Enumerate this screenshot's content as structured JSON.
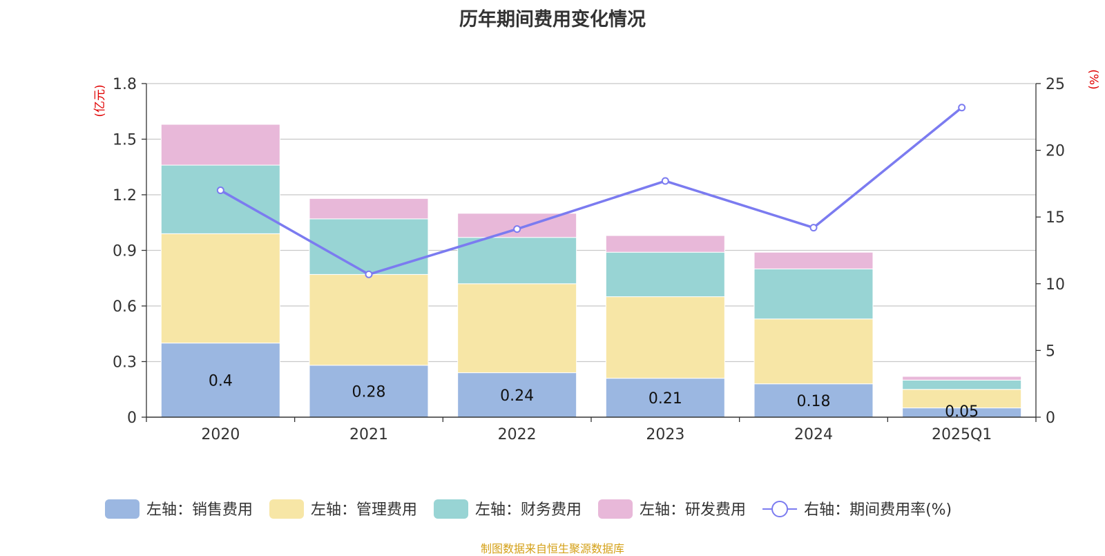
{
  "chart_data": {
    "type": "bar",
    "stacked": true,
    "title": "历年期间费用变化情况",
    "categories": [
      "2020",
      "2021",
      "2022",
      "2023",
      "2024",
      "2025Q1"
    ],
    "y_left": {
      "unit_label": "(亿元)",
      "ylim": [
        0,
        1.8
      ],
      "ticks": [
        "0",
        "0.3",
        "0.6",
        "0.9",
        "1.2",
        "1.5",
        "1.8"
      ]
    },
    "y_right": {
      "unit_label": "(%)",
      "ylim": [
        0,
        25
      ],
      "ticks": [
        "0",
        "5",
        "10",
        "15",
        "20",
        "25"
      ]
    },
    "series": [
      {
        "name": "左轴：销售费用",
        "axis": "left",
        "kind": "bar",
        "color": "#9bb7e1",
        "values": [
          0.4,
          0.28,
          0.24,
          0.21,
          0.18,
          0.05
        ],
        "labels": [
          "0.4",
          "0.28",
          "0.24",
          "0.21",
          "0.18",
          "0.05"
        ]
      },
      {
        "name": "左轴：管理费用",
        "axis": "left",
        "kind": "bar",
        "color": "#f7e6a6",
        "values": [
          0.59,
          0.49,
          0.48,
          0.44,
          0.35,
          0.1
        ]
      },
      {
        "name": "左轴：财务费用",
        "axis": "left",
        "kind": "bar",
        "color": "#98d4d4",
        "values": [
          0.37,
          0.3,
          0.25,
          0.24,
          0.27,
          0.05
        ]
      },
      {
        "name": "左轴：研发费用",
        "axis": "left",
        "kind": "bar",
        "color": "#e8b8d9",
        "values": [
          0.22,
          0.11,
          0.13,
          0.09,
          0.09,
          0.02
        ]
      },
      {
        "name": "右轴：期间费用率(%)",
        "axis": "right",
        "kind": "line",
        "color": "#7b7bf0",
        "values": [
          17.0,
          10.7,
          14.1,
          17.7,
          14.2,
          23.2
        ]
      }
    ],
    "grid": true,
    "legend_position": "bottom"
  },
  "source_text": "制图数据来自恒生聚源数据库"
}
